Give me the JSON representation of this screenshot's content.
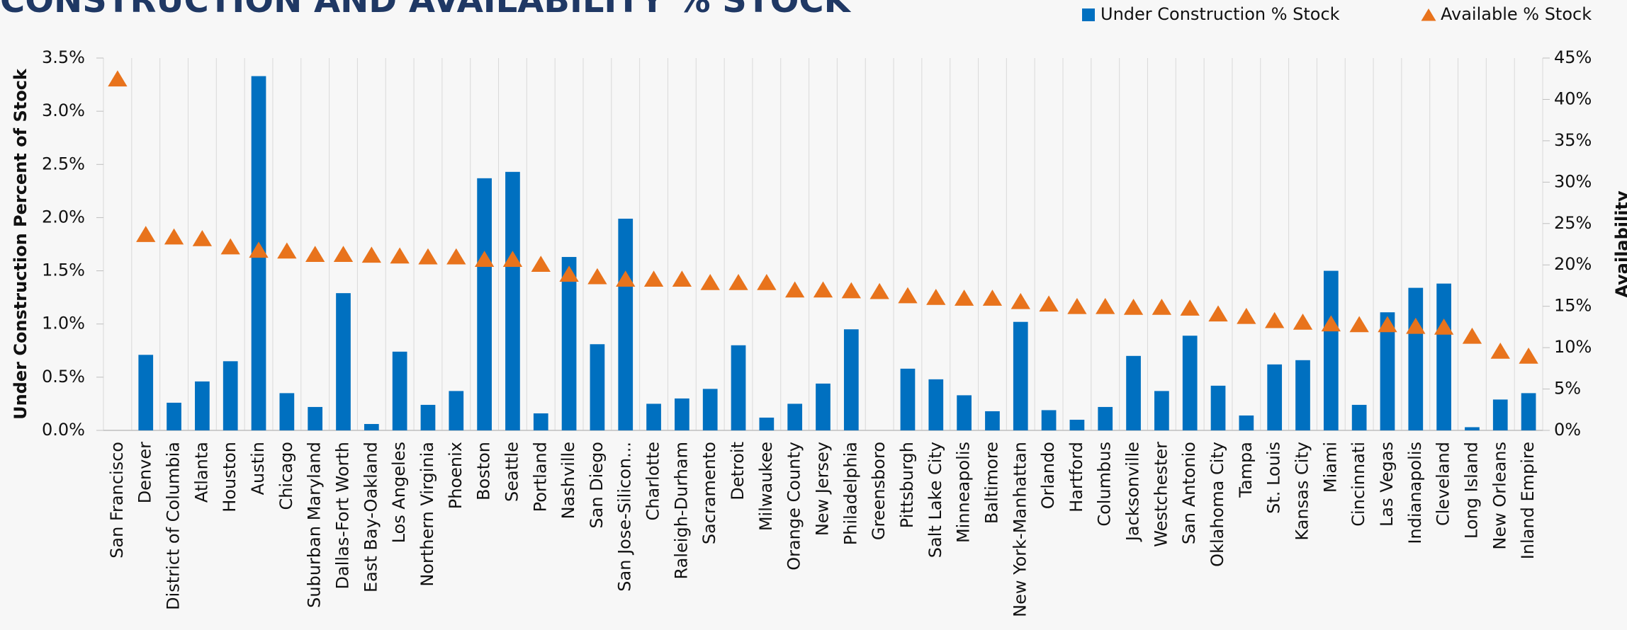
{
  "chart_data": {
    "type": "bar_triangle",
    "title": "CONSTRUCTION AND AVAILABILITY % STOCK",
    "y_label": "Under Construction Percent of Stock",
    "y2_label": "Availability",
    "categories": [
      "San Francisco",
      "Denver",
      "District of Columbia",
      "Atlanta",
      "Houston",
      "Austin",
      "Chicago",
      "Suburban Maryland",
      "Dallas-Fort Worth",
      "East Bay-Oakland",
      "Los Angeles",
      "Northern Virginia",
      "Phoenix",
      "Boston",
      "Seattle",
      "Portland",
      "Nashville",
      "San Diego",
      "San Jose-Silicon...",
      "Charlotte",
      "Raleigh-Durham",
      "Sacramento",
      "Detroit",
      "Milwaukee",
      "Orange County",
      "New Jersey",
      "Philadelphia",
      "Greensboro",
      "Pittsburgh",
      "Salt Lake City",
      "Minneapolis",
      "Baltimore",
      "New York-Manhattan",
      "Orlando",
      "Hartford",
      "Columbus",
      "Jacksonville",
      "Westchester",
      "San Antonio",
      "Oklahoma City",
      "Tampa",
      "St. Louis",
      "Kansas City",
      "Miami",
      "Cincinnati",
      "Las Vegas",
      "Indianapolis",
      "Cleveland",
      "Long Island",
      "New Orleans",
      "Inland Empire"
    ],
    "series": [
      {
        "name": "Under Construction % Stock",
        "color": "#0070c0",
        "kind": "bar",
        "values": [
          0,
          0.71,
          0.26,
          0.46,
          0.65,
          3.33,
          0.35,
          0.22,
          1.29,
          0.06,
          0.74,
          0.24,
          0.37,
          2.37,
          2.43,
          0.16,
          1.63,
          0.81,
          1.99,
          0.25,
          0.3,
          0.39,
          0.8,
          0.12,
          0.25,
          0.44,
          0.95,
          0,
          0.58,
          0.48,
          0.33,
          0.18,
          1.02,
          0.19,
          0.1,
          0.22,
          0.7,
          0.37,
          0.89,
          0.42,
          0.14,
          0.62,
          0.66,
          1.5,
          0.24,
          1.11,
          1.34,
          1.38,
          0.03,
          0.29,
          0.35
        ]
      },
      {
        "name": "Available % Stock",
        "color": "#e8731c",
        "kind": "triangle",
        "axis": "y2",
        "values": [
          42.4,
          23.6,
          23.3,
          23.1,
          22.1,
          21.7,
          21.6,
          21.2,
          21.2,
          21.1,
          21.0,
          20.9,
          20.9,
          20.6,
          20.6,
          20.0,
          18.8,
          18.5,
          18.2,
          18.2,
          18.2,
          17.8,
          17.8,
          17.8,
          16.9,
          16.9,
          16.8,
          16.7,
          16.2,
          16.0,
          15.9,
          15.9,
          15.5,
          15.2,
          14.9,
          14.9,
          14.8,
          14.8,
          14.7,
          14.0,
          13.7,
          13.2,
          13.0,
          12.8,
          12.7,
          12.7,
          12.5,
          12.4,
          11.3,
          9.5,
          8.9
        ]
      }
    ],
    "ylim": [
      0,
      3.5
    ],
    "yticks": [
      {
        "value": 0,
        "label": "0.0%"
      },
      {
        "value": 0.5,
        "label": "0.5%"
      },
      {
        "value": 1,
        "label": "1.0%"
      },
      {
        "value": 1.5,
        "label": "1.5%"
      },
      {
        "value": 2,
        "label": "2.0%"
      },
      {
        "value": 2.5,
        "label": "2.5%"
      },
      {
        "value": 3,
        "label": "3.0%"
      },
      {
        "value": 3.5,
        "label": "3.5%"
      }
    ],
    "y2lim": [
      0,
      45
    ],
    "y2ticks": [
      {
        "value": 0,
        "label": "0%"
      },
      {
        "value": 5,
        "label": "5%"
      },
      {
        "value": 10,
        "label": "10%"
      },
      {
        "value": 15,
        "label": "15%"
      },
      {
        "value": 20,
        "label": "20%"
      },
      {
        "value": 25,
        "label": "25%"
      },
      {
        "value": 30,
        "label": "30%"
      },
      {
        "value": 35,
        "label": "35%"
      },
      {
        "value": 40,
        "label": "40%"
      },
      {
        "value": 45,
        "label": "45%"
      }
    ],
    "grid": true,
    "legend": "top-right"
  }
}
